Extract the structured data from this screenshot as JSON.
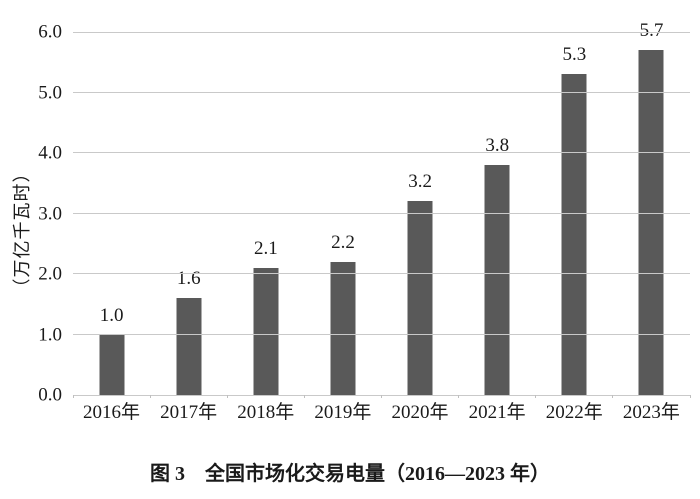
{
  "figure": {
    "caption": "图 3　全国市场化交易电量（2016—2023 年）"
  },
  "chart_data": {
    "type": "bar",
    "title": "图 3　全国市场化交易电量（2016—2023 年）",
    "categories": [
      "2016年",
      "2017年",
      "2018年",
      "2019年",
      "2020年",
      "2021年",
      "2022年",
      "2023年"
    ],
    "values": [
      1.0,
      1.6,
      2.1,
      2.2,
      3.2,
      3.8,
      5.3,
      5.7
    ],
    "data_labels": [
      "1.0",
      "1.6",
      "2.1",
      "2.2",
      "3.2",
      "3.8",
      "5.3",
      "5.7"
    ],
    "xlabel": "",
    "ylabel": "（万亿千瓦时）",
    "ylim": [
      0,
      6.0
    ],
    "ytick_labels": [
      "6.0",
      "5.0",
      "4.0",
      "3.0",
      "2.0",
      "1.0",
      "0.0"
    ],
    "grid": true,
    "legend_position": "none",
    "colors": {
      "bar": "#595959",
      "gridline": "#c9c9c9",
      "axis_tick": "#bfbfbf",
      "text": "#1a1a1a",
      "background": "#ffffff"
    }
  }
}
